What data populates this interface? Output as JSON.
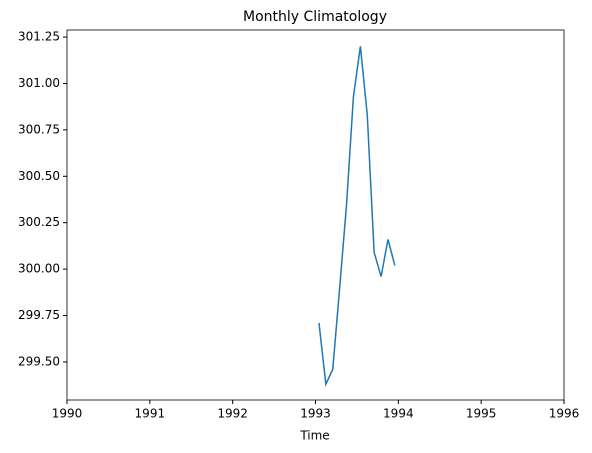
{
  "chart_data": {
    "type": "line",
    "title": "Monthly Climatology",
    "x_label": "Time",
    "x": [
      1993.042,
      1993.125,
      1993.208,
      1993.292,
      1993.375,
      1993.458,
      1993.542,
      1993.625,
      1993.708,
      1993.792,
      1993.875,
      1993.958
    ],
    "series": [
      {
        "color": "#1f77b4",
        "values": [
          299.71,
          299.38,
          299.46,
          299.9,
          300.35,
          300.93,
          301.2,
          300.83,
          300.09,
          299.96,
          300.16,
          300.02
        ]
      }
    ],
    "xlim": [
      1990,
      1996
    ],
    "xticks": [
      1990,
      1991,
      1992,
      1993,
      1994,
      1995,
      1996
    ],
    "ylim": [
      299.295,
      301.288
    ],
    "yticks": [
      {
        "value": 299.5,
        "label": "299.50"
      },
      299.75,
      {
        "value": 300,
        "label": "300.00"
      },
      300.25,
      {
        "value": 300.5,
        "label": "300.50"
      },
      300.75,
      {
        "value": 301,
        "label": "301.00"
      },
      301.25
    ],
    "grid": false
  }
}
